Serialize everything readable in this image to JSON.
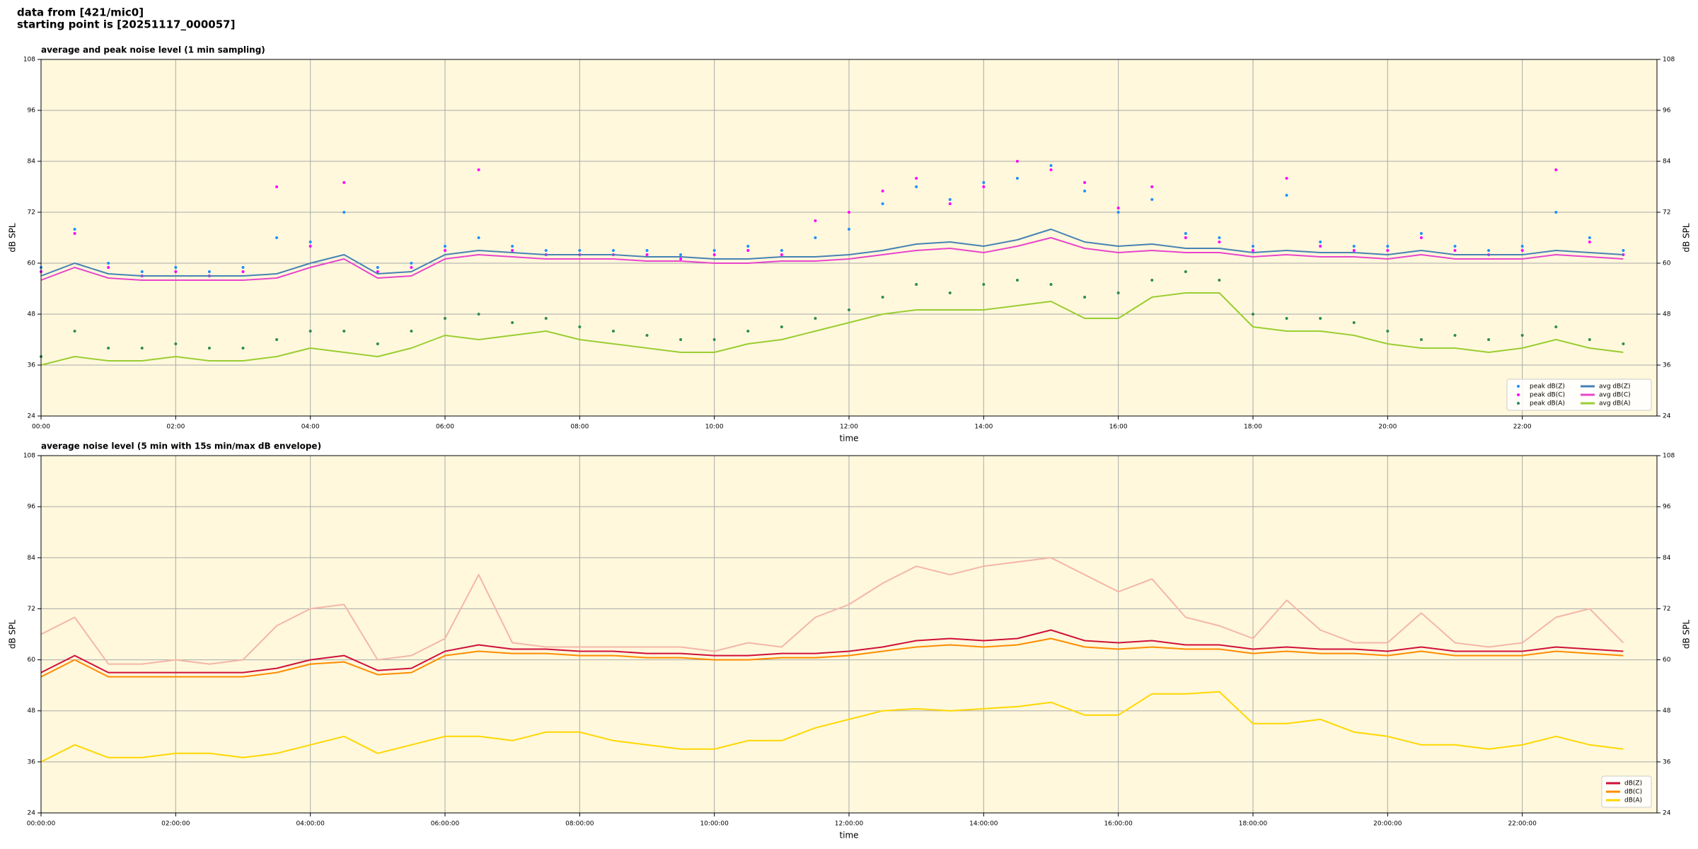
{
  "header": {
    "lines": [
      "data from [421/mic0]",
      "starting point is [20251117_000057]"
    ]
  },
  "chart_data": [
    {
      "type": "line",
      "title": "average and peak noise level (1 min sampling)",
      "xlabel": "time",
      "ylabel": "dB SPL",
      "x": [
        0,
        0.5,
        1,
        1.5,
        2,
        2.5,
        3,
        3.5,
        4,
        4.5,
        5,
        5.5,
        6,
        6.5,
        7,
        7.5,
        8,
        8.5,
        9,
        9.5,
        10,
        10.5,
        11,
        11.5,
        12,
        12.5,
        13,
        13.5,
        14,
        14.5,
        15,
        15.5,
        16,
        16.5,
        17,
        17.5,
        18,
        18.5,
        19,
        19.5,
        20,
        20.5,
        21,
        21.5,
        22,
        22.5,
        23,
        23.5
      ],
      "xlim": [
        0,
        24
      ],
      "xticks": [
        {
          "value": 0,
          "label": "00:00"
        },
        {
          "value": 2,
          "label": "02:00"
        },
        {
          "value": 4,
          "label": "04:00"
        },
        {
          "value": 6,
          "label": "06:00"
        },
        {
          "value": 8,
          "label": "08:00"
        },
        {
          "value": 10,
          "label": "10:00"
        },
        {
          "value": 12,
          "label": "12:00"
        },
        {
          "value": 14,
          "label": "14:00"
        },
        {
          "value": 16,
          "label": "16:00"
        },
        {
          "value": 18,
          "label": "18:00"
        },
        {
          "value": 20,
          "label": "20:00"
        },
        {
          "value": 22,
          "label": "22:00"
        }
      ],
      "ylim": [
        24,
        108
      ],
      "yticks": [
        24,
        36,
        48,
        60,
        72,
        84,
        96,
        108
      ],
      "grid": true,
      "legend": {
        "loc": "lower right",
        "ncol": 2
      },
      "series": [
        {
          "name": "peak dB(Z)",
          "type": "scatter",
          "color": "#1e90ff",
          "values": [
            59,
            68,
            60,
            58,
            59,
            58,
            59,
            66,
            65,
            72,
            59,
            60,
            64,
            66,
            64,
            63,
            63,
            63,
            63,
            62,
            63,
            64,
            63,
            66,
            68,
            74,
            78,
            75,
            79,
            80,
            83,
            77,
            72,
            75,
            67,
            66,
            64,
            76,
            65,
            64,
            64,
            67,
            64,
            63,
            64,
            72,
            66,
            63
          ]
        },
        {
          "name": "peak dB(C)",
          "type": "scatter",
          "color": "#ff00ff",
          "values": [
            58,
            67,
            59,
            57,
            58,
            57,
            58,
            78,
            64,
            79,
            58,
            59,
            63,
            82,
            63,
            62,
            62,
            62,
            62,
            61,
            62,
            63,
            62,
            70,
            72,
            77,
            80,
            74,
            78,
            84,
            82,
            79,
            73,
            78,
            66,
            65,
            63,
            80,
            64,
            63,
            63,
            66,
            63,
            62,
            63,
            82,
            65,
            62
          ]
        },
        {
          "name": "peak dB(A)",
          "type": "scatter",
          "color": "#2e8b57",
          "values": [
            38,
            44,
            40,
            40,
            41,
            40,
            40,
            42,
            44,
            44,
            41,
            44,
            47,
            48,
            46,
            47,
            45,
            44,
            43,
            42,
            42,
            44,
            45,
            47,
            49,
            52,
            55,
            53,
            55,
            56,
            55,
            52,
            53,
            56,
            58,
            56,
            48,
            47,
            47,
            46,
            44,
            42,
            43,
            42,
            43,
            45,
            42,
            41
          ]
        },
        {
          "name": "avg dB(Z)",
          "type": "line",
          "color": "#4682b4",
          "values": [
            57,
            60,
            57.5,
            57,
            57,
            57,
            57,
            57.5,
            60,
            62,
            57.5,
            58,
            62,
            63,
            62.5,
            62,
            62,
            62,
            61.5,
            61.5,
            61,
            61,
            61.5,
            61.5,
            62,
            63,
            64.5,
            65,
            64,
            65.5,
            68,
            65,
            64,
            64.5,
            63.5,
            63.5,
            62.5,
            63,
            62.5,
            62.5,
            62,
            63,
            62,
            62,
            62,
            63,
            62.5,
            62
          ]
        },
        {
          "name": "avg dB(C)",
          "type": "line",
          "color": "#e845cc",
          "values": [
            56,
            59,
            56.5,
            56,
            56,
            56,
            56,
            56.5,
            59,
            61,
            56.5,
            57,
            61,
            62,
            61.5,
            61,
            61,
            61,
            60.5,
            60.5,
            60,
            60,
            60.5,
            60.5,
            61,
            62,
            63,
            63.5,
            62.5,
            64,
            66,
            63.5,
            62.5,
            63,
            62.5,
            62.5,
            61.5,
            62,
            61.5,
            61.5,
            61,
            62,
            61,
            61,
            61,
            62,
            61.5,
            61
          ]
        },
        {
          "name": "avg dB(A)",
          "type": "line",
          "color": "#9acd32",
          "values": [
            36,
            38,
            37,
            37,
            38,
            37,
            37,
            38,
            40,
            39,
            38,
            40,
            43,
            42,
            43,
            44,
            42,
            41,
            40,
            39,
            39,
            41,
            42,
            44,
            46,
            48,
            49,
            49,
            49,
            50,
            51,
            47,
            47,
            52,
            53,
            53,
            45,
            44,
            44,
            43,
            41,
            40,
            40,
            39,
            40,
            42,
            40,
            39
          ]
        }
      ]
    },
    {
      "type": "line",
      "title": "average noise level (5 min with 15s min/max dB envelope)",
      "xlabel": "time",
      "ylabel": "dB SPL",
      "x": [
        0,
        0.5,
        1,
        1.5,
        2,
        2.5,
        3,
        3.5,
        4,
        4.5,
        5,
        5.5,
        6,
        6.5,
        7,
        7.5,
        8,
        8.5,
        9,
        9.5,
        10,
        10.5,
        11,
        11.5,
        12,
        12.5,
        13,
        13.5,
        14,
        14.5,
        15,
        15.5,
        16,
        16.5,
        17,
        17.5,
        18,
        18.5,
        19,
        19.5,
        20,
        20.5,
        21,
        21.5,
        22,
        22.5,
        23,
        23.5
      ],
      "xlim": [
        0,
        24
      ],
      "xticks": [
        {
          "value": 0,
          "label": "00:00:00"
        },
        {
          "value": 2,
          "label": "02:00:00"
        },
        {
          "value": 4,
          "label": "04:00:00"
        },
        {
          "value": 6,
          "label": "06:00:00"
        },
        {
          "value": 8,
          "label": "08:00:00"
        },
        {
          "value": 10,
          "label": "10:00:00"
        },
        {
          "value": 12,
          "label": "12:00:00"
        },
        {
          "value": 14,
          "label": "14:00:00"
        },
        {
          "value": 16,
          "label": "16:00:00"
        },
        {
          "value": 18,
          "label": "18:00:00"
        },
        {
          "value": 20,
          "label": "20:00:00"
        },
        {
          "value": 22,
          "label": "22:00:00"
        }
      ],
      "ylim": [
        24,
        108
      ],
      "yticks": [
        24,
        36,
        48,
        60,
        72,
        84,
        96,
        108
      ],
      "grid": true,
      "legend": {
        "loc": "lower right",
        "ncol": 1
      },
      "series": [
        {
          "name": "dB(Z)",
          "type": "line",
          "color": "#d0103a",
          "envelope_color": "#f4b6a8",
          "max": [
            66,
            70,
            59,
            59,
            60,
            59,
            60,
            68,
            72,
            73,
            60,
            61,
            65,
            80,
            64,
            63,
            63,
            63,
            63,
            63,
            62,
            64,
            63,
            70,
            73,
            78,
            82,
            80,
            82,
            83,
            84,
            80,
            76,
            79,
            70,
            68,
            65,
            74,
            67,
            64,
            64,
            71,
            64,
            63,
            64,
            70,
            72,
            64
          ],
          "values": [
            57,
            61,
            57,
            57,
            57,
            57,
            57,
            58,
            60,
            61,
            57.5,
            58,
            62,
            63.5,
            62.5,
            62.5,
            62,
            62,
            61.5,
            61.5,
            61,
            61,
            61.5,
            61.5,
            62,
            63,
            64.5,
            65,
            64.5,
            65,
            67,
            64.5,
            64,
            64.5,
            63.5,
            63.5,
            62.5,
            63,
            62.5,
            62.5,
            62,
            63,
            62,
            62,
            62,
            63,
            62.5,
            62
          ]
        },
        {
          "name": "dB(C)",
          "type": "line",
          "color": "#ff8c00",
          "values": [
            56,
            60,
            56,
            56,
            56,
            56,
            56,
            57,
            59,
            59.5,
            56.5,
            57,
            61,
            62,
            61.5,
            61.5,
            61,
            61,
            60.5,
            60.5,
            60,
            60,
            60.5,
            60.5,
            61,
            62,
            63,
            63.5,
            63,
            63.5,
            65,
            63,
            62.5,
            63,
            62.5,
            62.5,
            61.5,
            62,
            61.5,
            61.5,
            61,
            62,
            61,
            61,
            61,
            62,
            61.5,
            61
          ]
        },
        {
          "name": "dB(A)",
          "type": "line",
          "color": "#ffd700",
          "values": [
            36,
            40,
            37,
            37,
            38,
            38,
            37,
            38,
            40,
            42,
            38,
            40,
            42,
            42,
            41,
            43,
            43,
            41,
            40,
            39,
            39,
            41,
            41,
            44,
            46,
            48,
            48.5,
            48,
            48.5,
            49,
            50,
            47,
            47,
            52,
            52,
            52.5,
            45,
            45,
            46,
            43,
            42,
            40,
            40,
            39,
            40,
            42,
            40,
            39
          ]
        }
      ]
    }
  ]
}
